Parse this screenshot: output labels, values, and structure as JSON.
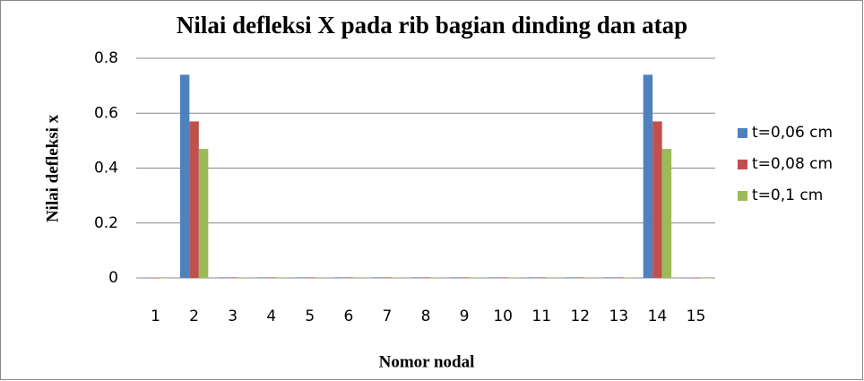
{
  "chart_data": {
    "type": "bar",
    "title": "Nilai defleksi X pada rib bagian dinding dan atap",
    "x_label": "Nomor nodal",
    "y_label": "Nilai defleksi x",
    "categories": [
      "1",
      "2",
      "3",
      "4",
      "5",
      "6",
      "7",
      "8",
      "9",
      "10",
      "11",
      "12",
      "13",
      "14",
      "15"
    ],
    "series": [
      {
        "name": "t=0,06 cm",
        "color": "#4f81bd",
        "values": [
          0,
          0.74,
          0.002,
          0.002,
          0.002,
          0.002,
          0.002,
          0.002,
          0.002,
          0.002,
          0.002,
          0.002,
          0.002,
          0.74,
          0
        ]
      },
      {
        "name": "t=0,08 cm",
        "color": "#c0504d",
        "values": [
          0,
          0.57,
          0.002,
          0.002,
          0.002,
          0.002,
          0.002,
          0.002,
          0.002,
          0.002,
          0.002,
          0.002,
          0.002,
          0.57,
          0
        ]
      },
      {
        "name": "t=0,1 cm",
        "color": "#9bbb59",
        "values": [
          0,
          0.47,
          0.002,
          0.002,
          0.002,
          0.002,
          0.002,
          0.002,
          0.002,
          0.002,
          0.002,
          0.002,
          0.002,
          0.47,
          0
        ]
      }
    ],
    "ylim": [
      0,
      0.8
    ],
    "yticks": [
      0,
      0.2,
      0.4,
      0.6,
      0.8
    ],
    "grid": true,
    "legend": "right"
  }
}
